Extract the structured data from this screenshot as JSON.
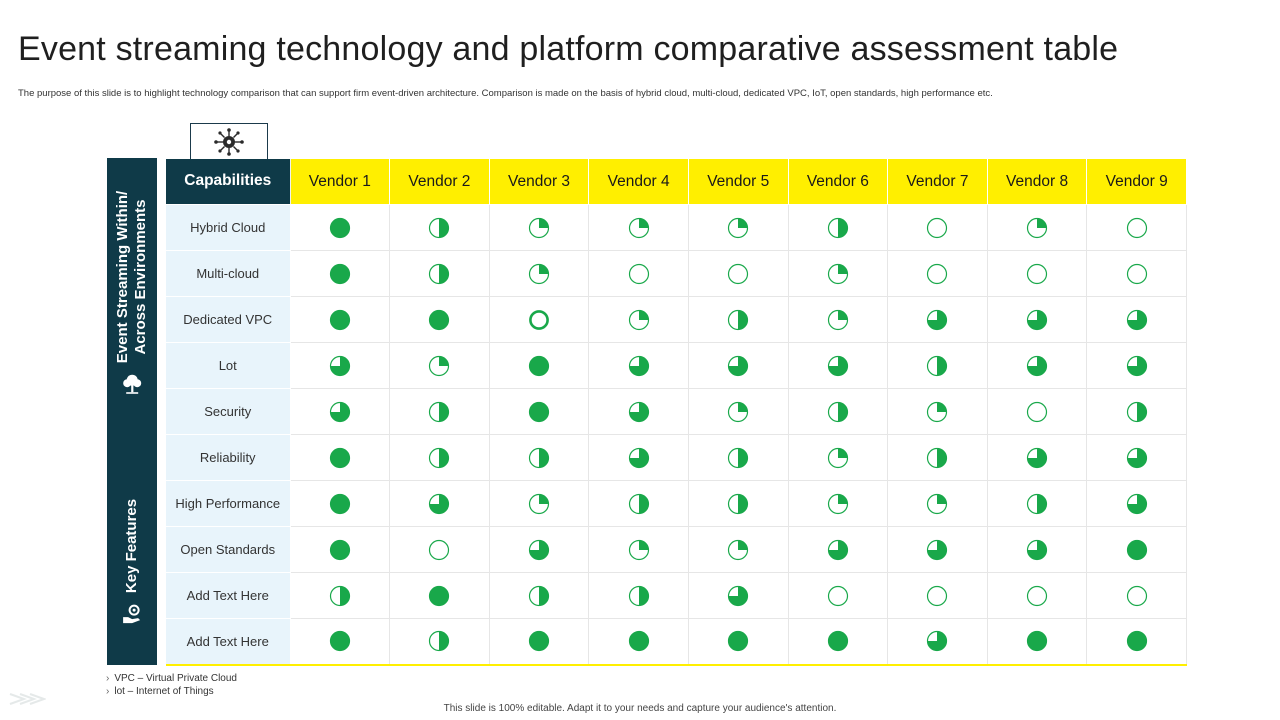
{
  "title": "Event streaming technology and platform comparative assessment table",
  "subtitle": "The purpose of this slide is to highlight technology comparison that can support firm event-driven architecture. Comparison is made on the basis of hybrid cloud, multi-cloud, dedicated VPC, IoT, open standards, high performance etc.",
  "colors": {
    "accent_yellow": "#ffef00",
    "dark_teal": "#0f3a48",
    "green": "#19a84a",
    "row_label_bg": "#e8f4fb"
  },
  "side_sections": [
    {
      "lines": [
        "Event Streaming Within/",
        "Across Environments"
      ],
      "icon": "tree-icon"
    },
    {
      "lines": [
        "Key Features"
      ],
      "icon": "hand-gear-icon"
    }
  ],
  "table": {
    "header_label": "Capabilities",
    "header_icon": "network-hub-icon",
    "vendors": [
      "Vendor 1",
      "Vendor 2",
      "Vendor 3",
      "Vendor 4",
      "Vendor 5",
      "Vendor 6",
      "Vendor 7",
      "Vendor 8",
      "Vendor 9"
    ],
    "rows": [
      {
        "label": "Hybrid Cloud",
        "ratings": [
          1,
          0.5,
          0.25,
          0.25,
          0.25,
          0.5,
          0,
          0.25,
          0
        ]
      },
      {
        "label": "Multi-cloud",
        "ratings": [
          1,
          0.5,
          0.25,
          0,
          0,
          0.25,
          0,
          0,
          0
        ]
      },
      {
        "label": "Dedicated VPC",
        "ratings": [
          1,
          1,
          "ring",
          0.25,
          0.5,
          0.25,
          0.75,
          0.75,
          0.75
        ]
      },
      {
        "label": "Lot",
        "ratings": [
          0.75,
          0.25,
          1,
          0.75,
          0.75,
          0.75,
          0.5,
          0.75,
          0.75
        ]
      },
      {
        "label": "Security",
        "ratings": [
          0.75,
          0.5,
          1,
          0.75,
          0.25,
          0.5,
          0.25,
          0,
          0.5
        ]
      },
      {
        "label": "Reliability",
        "ratings": [
          1,
          0.5,
          0.5,
          0.75,
          0.5,
          0.25,
          0.5,
          0.75,
          0.75
        ]
      },
      {
        "label": "High Performance",
        "ratings": [
          1,
          0.75,
          0.25,
          0.5,
          0.5,
          0.25,
          0.25,
          0.5,
          0.75
        ]
      },
      {
        "label": "Open Standards",
        "ratings": [
          1,
          0,
          0.75,
          0.25,
          0.25,
          0.75,
          0.75,
          0.75,
          1
        ]
      },
      {
        "label": "Add Text Here",
        "ratings": [
          0.5,
          1,
          0.5,
          0.5,
          0.75,
          0,
          0,
          0,
          0
        ]
      },
      {
        "label": "Add Text Here",
        "ratings": [
          1,
          0.5,
          1,
          1,
          1,
          1,
          0.75,
          1,
          1
        ]
      }
    ]
  },
  "notes": [
    "VPC – Virtual Private Cloud",
    "lot – Internet of Things"
  ],
  "footer": "This slide is 100% editable. Adapt it to your needs and capture your audience's attention."
}
